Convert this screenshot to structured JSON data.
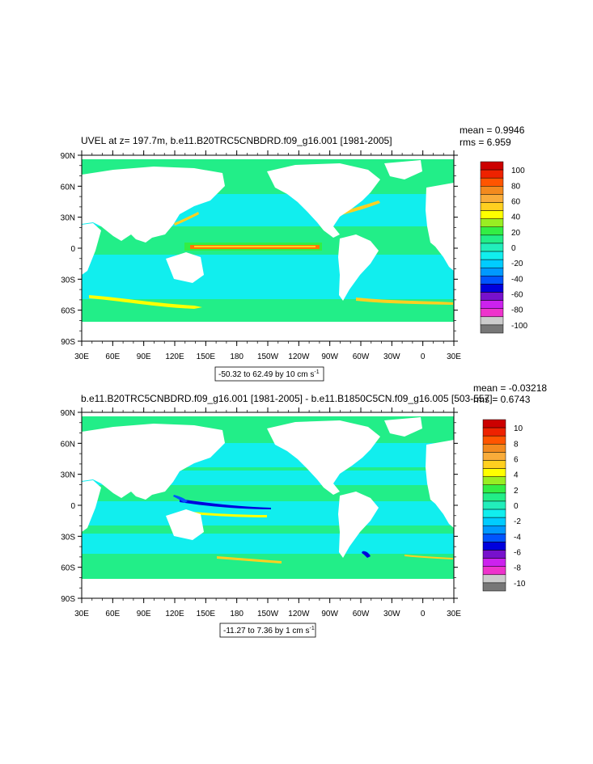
{
  "panels": [
    {
      "title": "UVEL at z= 197.7m, b.e11.B20TRC5CNBDRD.f09_g16.001 [1981-2005]",
      "mean": "mean = 0.9946",
      "rms": "rms = 6.959",
      "range": "-50.32 to 62.49 by 10 cm s",
      "range_sup": "-1",
      "lat_labels": [
        "90N",
        "60N",
        "30N",
        "0",
        "30S",
        "60S",
        "90S"
      ],
      "lon_labels": [
        "30E",
        "60E",
        "90E",
        "120E",
        "150E",
        "180",
        "150W",
        "120W",
        "90W",
        "60W",
        "30W",
        "0",
        "30E"
      ],
      "colorbar_labels": [
        "100",
        "80",
        "60",
        "40",
        "20",
        "0",
        "-20",
        "-40",
        "-60",
        "-80",
        "-100"
      ]
    },
    {
      "title": "b.e11.B20TRC5CNBDRD.f09_g16.001 [1981-2005] - b.e11.B1850C5CN.f09_g16.005 [503-557]",
      "mean": "mean = -0.03218",
      "rms": "rms = 0.6743",
      "range": "-11.27 to 7.36 by 1 cm s",
      "range_sup": "-1",
      "lat_labels": [
        "90N",
        "60N",
        "30N",
        "0",
        "30S",
        "60S",
        "90S"
      ],
      "lon_labels": [
        "30E",
        "60E",
        "90E",
        "120E",
        "150E",
        "180",
        "150W",
        "120W",
        "90W",
        "60W",
        "30W",
        "0",
        "30E"
      ],
      "colorbar_labels": [
        "10",
        "8",
        "6",
        "4",
        "2",
        "0",
        "-2",
        "-4",
        "-6",
        "-8",
        "-10"
      ]
    }
  ],
  "colors": {
    "palette": [
      "#cc0000",
      "#ee2200",
      "#ff5500",
      "#f38a1e",
      "#f9ac3a",
      "#ffd020",
      "#ffff00",
      "#99ee22",
      "#33ee44",
      "#22ee88",
      "#22eebb",
      "#11eeee",
      "#00ccff",
      "#0099ff",
      "#0055ff",
      "#0000dd",
      "#7711cc",
      "#cc22ee",
      "#ee33cc",
      "#cccccc",
      "#777777"
    ],
    "ocean_main": "#22ee88",
    "ocean_neg": "#11eeee",
    "land": "#ffffff"
  }
}
